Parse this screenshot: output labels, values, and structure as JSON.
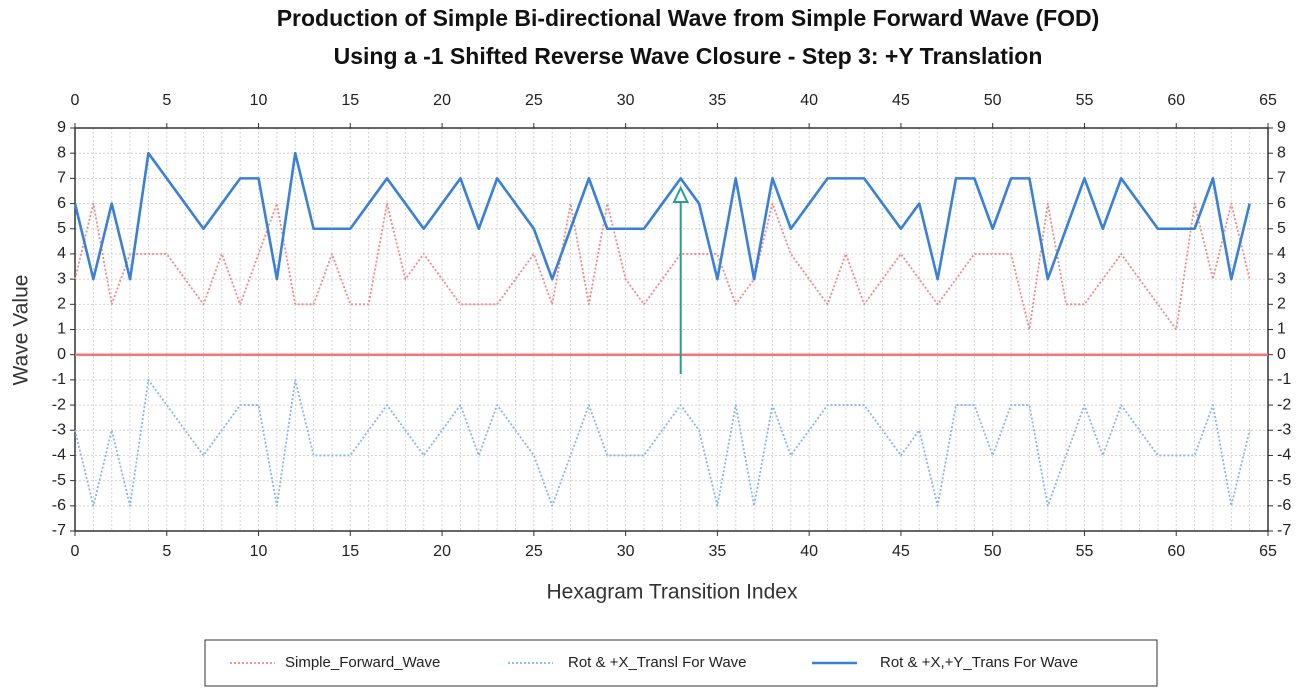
{
  "chart_data": {
    "type": "line",
    "title": [
      "Production of Simple Bi-directional Wave from Simple Forward Wave (FOD)",
      "Using a -1 Shifted Reverse Wave Closure - Step 3: +Y Translation"
    ],
    "xlabel": "Hexagram Transition Index",
    "ylabel": "Wave Value",
    "x": [
      0,
      1,
      2,
      3,
      4,
      5,
      6,
      7,
      8,
      9,
      10,
      11,
      12,
      13,
      14,
      15,
      16,
      17,
      18,
      19,
      20,
      21,
      22,
      23,
      24,
      25,
      26,
      27,
      28,
      29,
      30,
      31,
      32,
      33,
      34,
      35,
      36,
      37,
      38,
      39,
      40,
      41,
      42,
      43,
      44,
      45,
      46,
      47,
      48,
      49,
      50,
      51,
      52,
      53,
      54,
      55,
      56,
      57,
      58,
      59,
      60,
      61,
      62,
      63,
      64
    ],
    "series": [
      {
        "name": "Simple_Forward_Wave",
        "color": "#f08a8a",
        "style": "dotted",
        "values": [
          3,
          6,
          2,
          4,
          4,
          4,
          3,
          2,
          4,
          2,
          4,
          6,
          2,
          2,
          4,
          2,
          2,
          6,
          3,
          4,
          3,
          2,
          2,
          2,
          3,
          4,
          2,
          6,
          2,
          6,
          3,
          2,
          3,
          4,
          4,
          4,
          2,
          3,
          6,
          4,
          3,
          2,
          4,
          2,
          3,
          4,
          3,
          2,
          3,
          4,
          4,
          4,
          1,
          6,
          2,
          2,
          3,
          4,
          3,
          2,
          1,
          6,
          3,
          6,
          3
        ]
      },
      {
        "name": "Rot & +X_Transl For Wave",
        "color": "#86b6f0",
        "style": "dotted",
        "values": [
          -3,
          -6,
          -3,
          -6,
          -1,
          -2,
          -3,
          -4,
          -3,
          -2,
          -2,
          -6,
          -1,
          -4,
          -4,
          -4,
          -3,
          -2,
          -3,
          -4,
          -3,
          -2,
          -4,
          -2,
          -3,
          -4,
          -6,
          -4,
          -2,
          -4,
          -4,
          -4,
          -3,
          -2,
          -3,
          -6,
          -2,
          -6,
          -2,
          -4,
          -3,
          -2,
          -2,
          -2,
          -3,
          -4,
          -3,
          -6,
          -2,
          -2,
          -4,
          -2,
          -2,
          -6,
          -4,
          -2,
          -4,
          -2,
          -3,
          -4,
          -4,
          -4,
          -2,
          -6,
          -3
        ]
      },
      {
        "name": "Rot & +X,+Y_Trans For Wave",
        "color": "#3a7fd8",
        "style": "solid",
        "values": [
          6,
          3,
          6,
          3,
          8,
          7,
          6,
          5,
          6,
          7,
          7,
          3,
          8,
          5,
          5,
          5,
          6,
          7,
          6,
          5,
          6,
          7,
          5,
          7,
          6,
          5,
          3,
          5,
          7,
          5,
          5,
          5,
          6,
          7,
          6,
          3,
          7,
          3,
          7,
          5,
          6,
          7,
          7,
          7,
          6,
          5,
          6,
          3,
          7,
          7,
          5,
          7,
          7,
          3,
          5,
          7,
          5,
          7,
          6,
          5,
          5,
          5,
          7,
          3,
          6
        ]
      }
    ],
    "xlim": [
      0,
      65
    ],
    "xticks": [
      0,
      5,
      10,
      15,
      20,
      25,
      30,
      35,
      40,
      45,
      50,
      55,
      60,
      65
    ],
    "ylim": [
      -7,
      9
    ],
    "yticks": [
      -7,
      -6,
      -5,
      -4,
      -3,
      -2,
      -1,
      0,
      1,
      2,
      3,
      4,
      5,
      6,
      7,
      8,
      9
    ],
    "grid": true,
    "hline": {
      "value": 0,
      "color": "#f07878"
    }
  }
}
